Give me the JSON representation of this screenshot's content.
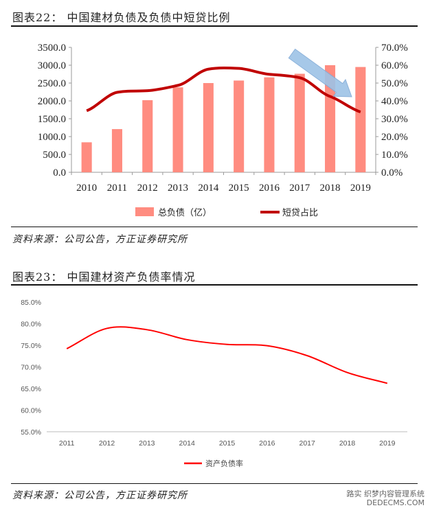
{
  "figure1": {
    "title": "图表22：  中国建材负债及负债中短贷比例",
    "source": "资料来源：公司公告，方正证券研究所"
  },
  "figure2": {
    "title": "图表23：  中国建材资产负债率情况",
    "source": "资料来源：公司公告，方正证券研究所"
  },
  "watermark": {
    "line1": "路实",
    "line2": "织梦内容管理系统",
    "line3": "DEDECMS.COM"
  },
  "colors": {
    "bar": "#ff8c80",
    "line1": "#c00000",
    "line2": "#ff0000",
    "arrow": "#9dc3e6"
  },
  "chart_data": [
    {
      "type": "bar",
      "categories": [
        "2010",
        "2011",
        "2012",
        "2013",
        "2014",
        "2015",
        "2016",
        "2017",
        "2018",
        "2019"
      ],
      "series": [
        {
          "name": "总负债（亿）",
          "type": "bar",
          "axis": "left",
          "values": [
            840,
            1210,
            2020,
            2380,
            2500,
            2570,
            2660,
            2760,
            3000,
            2950
          ]
        },
        {
          "name": "短贷占比",
          "type": "line",
          "axis": "right",
          "values": [
            34.5,
            44.8,
            45.7,
            48.7,
            57.8,
            58.2,
            54.9,
            53.0,
            42.5,
            33.8
          ]
        }
      ],
      "y_left": {
        "ylim": [
          0,
          3500
        ],
        "ticks": [
          "0.0",
          "500.0",
          "1000.0",
          "1500.0",
          "2000.0",
          "2500.0",
          "3000.0",
          "3500.0"
        ]
      },
      "y_right": {
        "ylim": [
          0,
          70
        ],
        "ticks": [
          "0.0%",
          "10.0%",
          "20.0%",
          "30.0%",
          "40.0%",
          "50.0%",
          "60.0%",
          "70.0%"
        ]
      },
      "legend": "bottom",
      "grid": false,
      "annotation": "arrow-down-right"
    },
    {
      "type": "line",
      "x": [
        "2011",
        "2012",
        "2013",
        "2014",
        "2015",
        "2016",
        "2017",
        "2018",
        "2019"
      ],
      "series": [
        {
          "name": "资产负债率",
          "values": [
            74.2,
            78.9,
            78.6,
            76.3,
            75.2,
            74.9,
            72.6,
            68.7,
            66.2
          ]
        }
      ],
      "ylim": [
        55,
        85
      ],
      "y_ticks": [
        "55.0%",
        "60.0%",
        "65.0%",
        "70.0%",
        "75.0%",
        "80.0%",
        "85.0%"
      ],
      "legend": "bottom",
      "grid": false
    }
  ]
}
